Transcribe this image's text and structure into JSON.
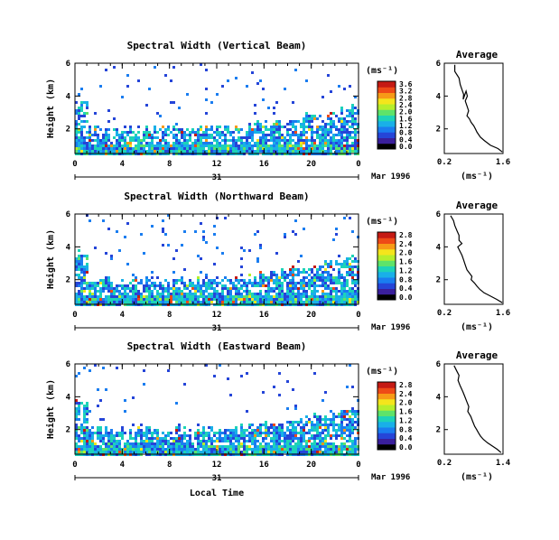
{
  "figure": {
    "xlabel": "Local Time",
    "date_label": "Mar 1996",
    "day_label": "31",
    "height_label": "Height (km)",
    "unit_label": "(ms⁻¹)",
    "average_title": "Average",
    "average_xlabel": "(ms⁻¹)"
  },
  "colormap": [
    "#000000",
    "#3a1f9c",
    "#2545d8",
    "#1a7df0",
    "#19b0e8",
    "#1dd3b8",
    "#5ee36a",
    "#b6ee2c",
    "#f4e51c",
    "#f79a17",
    "#ee4a17",
    "#c51a14"
  ],
  "chart_data": [
    {
      "type": "heatmap",
      "title": "Spectral Width (Vertical Beam)",
      "xlabel": "",
      "ylabel": "Height (km)",
      "xlim": [
        0,
        24
      ],
      "ylim": [
        0.5,
        6
      ],
      "xticks": [
        "0",
        "4",
        "8",
        "12",
        "16",
        "20",
        "0"
      ],
      "yticks": [
        "6",
        "4",
        "2"
      ],
      "colorbar": {
        "min": 0.0,
        "max": 3.6,
        "ticks": [
          "3.6",
          "3.2",
          "2.8",
          "2.4",
          "2.0",
          "1.6",
          "1.2",
          "0.8",
          "0.4",
          "0.0"
        ]
      }
    },
    {
      "type": "line",
      "title": "Average",
      "xlabel": "(ms⁻¹)",
      "xlim": [
        0.2,
        1.6
      ],
      "ylim": [
        0.5,
        6
      ],
      "xticks": [
        "0.2",
        "1.6"
      ],
      "yticks": [
        "6",
        "4",
        "2"
      ],
      "x": [
        0.45,
        0.45,
        0.55,
        0.58,
        0.62,
        0.66,
        0.65,
        0.72,
        0.75,
        0.7,
        0.74,
        0.78,
        0.74,
        0.8,
        0.84,
        0.9,
        0.94,
        0.98,
        1.06,
        1.15,
        1.3,
        1.48,
        1.58
      ],
      "y": [
        5.9,
        5.5,
        5.1,
        4.7,
        4.4,
        4.1,
        3.8,
        4.3,
        4.0,
        3.7,
        3.4,
        3.1,
        2.8,
        2.6,
        2.4,
        2.2,
        2.0,
        1.8,
        1.5,
        1.3,
        1.0,
        0.8,
        0.6
      ]
    },
    {
      "type": "heatmap",
      "title": "Spectral Width (Northward Beam)",
      "xlabel": "",
      "ylabel": "Height (km)",
      "xlim": [
        0,
        24
      ],
      "ylim": [
        0.5,
        6
      ],
      "xticks": [
        "0",
        "4",
        "8",
        "12",
        "16",
        "20",
        "0"
      ],
      "yticks": [
        "6",
        "4",
        "2"
      ],
      "colorbar": {
        "min": 0.0,
        "max": 2.8,
        "ticks": [
          "2.8",
          "2.4",
          "2.0",
          "1.6",
          "1.2",
          "0.8",
          "0.4",
          "0.0"
        ]
      }
    },
    {
      "type": "line",
      "title": "Average",
      "xlabel": "(ms⁻¹)",
      "xlim": [
        0.2,
        1.6
      ],
      "ylim": [
        0.5,
        6
      ],
      "xticks": [
        "0.2",
        "1.6"
      ],
      "yticks": [
        "6",
        "4",
        "2"
      ],
      "x": [
        0.35,
        0.42,
        0.45,
        0.5,
        0.55,
        0.55,
        0.62,
        0.52,
        0.56,
        0.62,
        0.66,
        0.7,
        0.74,
        0.8,
        0.86,
        0.84,
        0.92,
        0.98,
        1.05,
        1.15,
        1.3,
        1.45,
        1.58
      ],
      "y": [
        5.9,
        5.6,
        5.3,
        5.0,
        4.7,
        4.4,
        4.2,
        4.0,
        3.8,
        3.5,
        3.2,
        2.9,
        2.6,
        2.4,
        2.2,
        2.0,
        1.8,
        1.6,
        1.4,
        1.2,
        1.0,
        0.8,
        0.6
      ]
    },
    {
      "type": "heatmap",
      "title": "Spectral Width (Eastward Beam)",
      "xlabel": "",
      "ylabel": "Height (km)",
      "xlim": [
        0,
        24
      ],
      "ylim": [
        0.5,
        6
      ],
      "xticks": [
        "0",
        "4",
        "8",
        "12",
        "16",
        "20",
        "0"
      ],
      "yticks": [
        "6",
        "4",
        "2"
      ],
      "colorbar": {
        "min": 0.0,
        "max": 2.8,
        "ticks": [
          "2.8",
          "2.4",
          "2.0",
          "1.6",
          "1.2",
          "0.8",
          "0.4",
          "0.0"
        ]
      }
    },
    {
      "type": "line",
      "title": "Average",
      "xlabel": "(ms⁻¹)",
      "xlim": [
        0.2,
        1.4
      ],
      "ylim": [
        0.5,
        6
      ],
      "xticks": [
        "0.2",
        "1.4"
      ],
      "yticks": [
        "6",
        "4",
        "2"
      ],
      "x": [
        0.4,
        0.45,
        0.5,
        0.48,
        0.52,
        0.58,
        0.62,
        0.66,
        0.7,
        0.68,
        0.74,
        0.78,
        0.82,
        0.86,
        0.9,
        0.94,
        1.0,
        1.08,
        1.18,
        1.28,
        1.36
      ],
      "y": [
        5.9,
        5.6,
        5.3,
        5.0,
        4.7,
        4.3,
        4.0,
        3.7,
        3.4,
        3.1,
        2.8,
        2.5,
        2.2,
        2.0,
        1.8,
        1.6,
        1.4,
        1.2,
        1.0,
        0.8,
        0.6
      ]
    }
  ]
}
